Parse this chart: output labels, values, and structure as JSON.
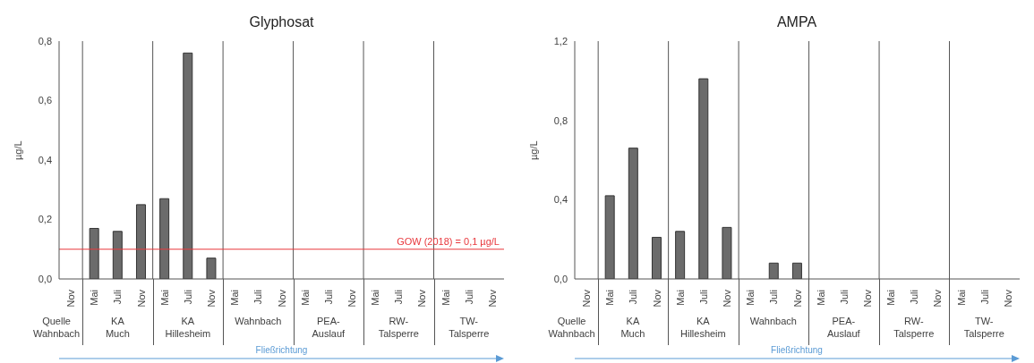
{
  "chart_data": [
    {
      "type": "bar",
      "title": "Glyphosat",
      "ylabel": "µg/L",
      "categories": [
        "Nov",
        "Mai",
        "Juli",
        "Nov",
        "Mai",
        "Juli",
        "Nov",
        "Mai",
        "Juli",
        "Nov",
        "Mai",
        "Juli",
        "Nov",
        "Mai",
        "Juli",
        "Nov",
        "Mai",
        "Juli",
        "Nov"
      ],
      "values": [
        null,
        0.17,
        0.16,
        0.25,
        0.27,
        0.76,
        0.07,
        null,
        null,
        null,
        null,
        null,
        null,
        null,
        null,
        null,
        null,
        null,
        null
      ],
      "color": "#6b6b6b",
      "ylim": [
        0,
        0.8
      ],
      "yticks": [
        {
          "value": 0,
          "label": "0,0"
        },
        {
          "value": 0.2,
          "label": "0,2"
        },
        {
          "value": 0.4,
          "label": "0,4"
        },
        {
          "value": 0.6,
          "label": "0,6"
        },
        {
          "value": 0.8,
          "label": "0,8"
        }
      ],
      "ref_lines": [
        {
          "axis": "y",
          "value": 0.1,
          "label": "GOW (2018) =  0,1 µg/L",
          "color": "#e8383d"
        }
      ],
      "annotations": [
        "Quelle Wahnbach",
        "KA Much",
        "KA Hillesheim",
        "Wahnbach",
        "PEA-Auslauf",
        "RW-Talsperre",
        "TW-Talsperre",
        "Fließrichtung"
      ]
    },
    {
      "type": "bar",
      "title": "AMPA",
      "ylabel": "µg/L",
      "categories": [
        "Nov",
        "Mai",
        "Juli",
        "Nov",
        "Mai",
        "Juli",
        "Nov",
        "Mai",
        "Juli",
        "Nov",
        "Mai",
        "Juli",
        "Nov",
        "Mai",
        "Juli",
        "Nov",
        "Mai",
        "Juli",
        "Nov"
      ],
      "values": [
        null,
        0.42,
        0.66,
        0.21,
        0.24,
        1.01,
        0.26,
        null,
        0.08,
        0.08,
        null,
        null,
        null,
        null,
        null,
        null,
        null,
        null,
        null
      ],
      "color": "#6b6b6b",
      "ylim": [
        0,
        1.2
      ],
      "yticks": [
        {
          "value": 0,
          "label": "0,0"
        },
        {
          "value": 0.4,
          "label": "0,4"
        },
        {
          "value": 0.8,
          "label": "0,8"
        },
        {
          "value": 1.2,
          "label": "1,2"
        }
      ],
      "annotations": [
        "Quelle Wahnbach",
        "KA Much",
        "KA Hillesheim",
        "Wahnbach",
        "PEA-Auslauf",
        "RW-Talsperre",
        "TW-Talsperre",
        "Fließrichtung"
      ]
    }
  ]
}
